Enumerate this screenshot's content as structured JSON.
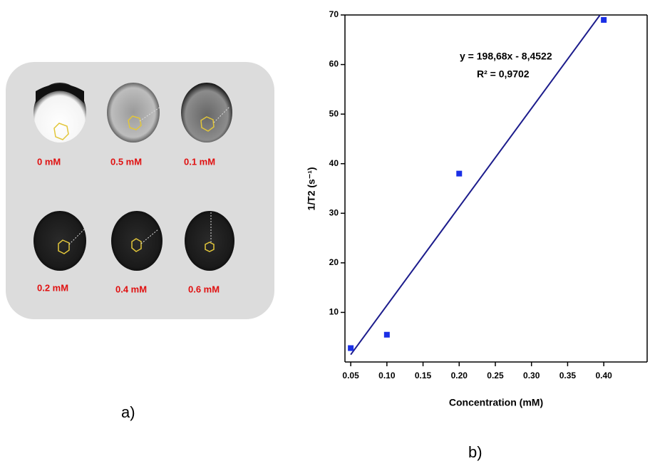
{
  "panel_a": {
    "label": "a)",
    "samples": [
      "0 mM",
      "0.5 mM",
      "0.1 mM",
      "0.2 mM",
      "0.4 mM",
      "0.6 mM"
    ]
  },
  "chart_data": {
    "type": "scatter",
    "panel_label": "b)",
    "x_label": "Concentration (mM)",
    "y_label": "1/T2 (s⁻¹)",
    "annotations": [
      "y = 198,68x - 8,4522",
      "R² = 0,9702"
    ],
    "x": [
      0.05,
      0.1,
      0.2,
      0.4
    ],
    "values": [
      2.8,
      5.5,
      38,
      69
    ],
    "color": "#1a2fe6",
    "fit": {
      "x": [
        0.05,
        0.4
      ],
      "values": [
        1.48,
        71.02
      ],
      "color": "#1c1c8c"
    },
    "xlim": [
      0.042,
      0.46
    ],
    "ylim": [
      0,
      70
    ],
    "xticks": [
      {
        "value": 0.05,
        "label": "0.05"
      },
      {
        "value": 0.1,
        "label": "0.10"
      },
      {
        "value": 0.15,
        "label": "0.15"
      },
      {
        "value": 0.2,
        "label": "0.20"
      },
      {
        "value": 0.25,
        "label": "0.25"
      },
      {
        "value": 0.3,
        "label": "0.30"
      },
      {
        "value": 0.35,
        "label": "0.35"
      },
      {
        "value": 0.4,
        "label": "0.40"
      }
    ],
    "yticks": [
      10,
      20,
      30,
      40,
      50,
      60,
      70
    ]
  }
}
